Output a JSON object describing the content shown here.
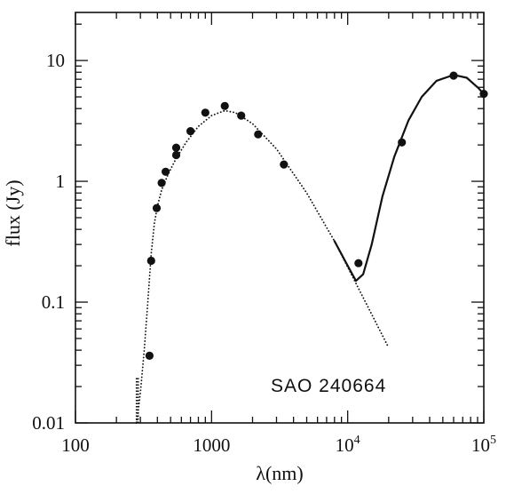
{
  "chart_data": {
    "type": "scatter",
    "title": "",
    "xlabel": "λ(nm)",
    "ylabel": "flux (Jy)",
    "xscale": "log",
    "yscale": "log",
    "xlim": [
      100,
      100000
    ],
    "ylim": [
      0.01,
      25
    ],
    "grid": false,
    "legend": "none",
    "x_ticks": [
      {
        "value": 100,
        "label": "100"
      },
      {
        "value": 1000,
        "label": "1000"
      },
      {
        "value": 10000,
        "base": "10",
        "exp": "4"
      },
      {
        "value": 100000,
        "base": "10",
        "exp": "5"
      }
    ],
    "y_ticks": [
      {
        "value": 0.01,
        "label": "0.01"
      },
      {
        "value": 0.1,
        "label": "0.1"
      },
      {
        "value": 1,
        "label": "1"
      },
      {
        "value": 10,
        "label": "10"
      }
    ],
    "annotation": "SAO 240664",
    "points": [
      {
        "x": 350,
        "y": 0.036
      },
      {
        "x": 360,
        "y": 0.22
      },
      {
        "x": 395,
        "y": 0.6
      },
      {
        "x": 430,
        "y": 0.97
      },
      {
        "x": 460,
        "y": 1.2
      },
      {
        "x": 550,
        "y": 1.65
      },
      {
        "x": 550,
        "y": 1.9
      },
      {
        "x": 700,
        "y": 2.6
      },
      {
        "x": 900,
        "y": 3.7
      },
      {
        "x": 1250,
        "y": 4.2
      },
      {
        "x": 1650,
        "y": 3.5
      },
      {
        "x": 2200,
        "y": 2.45
      },
      {
        "x": 3400,
        "y": 1.38
      },
      {
        "x": 12000,
        "y": 0.21
      },
      {
        "x": 25000,
        "y": 2.1
      },
      {
        "x": 60000,
        "y": 7.5
      },
      {
        "x": 100000,
        "y": 5.3
      }
    ],
    "series": [
      {
        "style": "dotted",
        "points": [
          [
            280,
            0.01
          ],
          [
            290,
            0.013
          ],
          [
            300,
            0.018
          ],
          [
            320,
            0.04
          ],
          [
            340,
            0.1
          ],
          [
            360,
            0.25
          ],
          [
            380,
            0.45
          ],
          [
            400,
            0.62
          ],
          [
            430,
            0.85
          ],
          [
            480,
            1.15
          ],
          [
            550,
            1.55
          ],
          [
            650,
            2.1
          ],
          [
            800,
            2.85
          ],
          [
            1000,
            3.5
          ],
          [
            1250,
            3.85
          ],
          [
            1500,
            3.7
          ],
          [
            2000,
            3.0
          ],
          [
            3000,
            1.85
          ],
          [
            5000,
            0.8
          ],
          [
            8000,
            0.32
          ],
          [
            12000,
            0.13
          ],
          [
            20000,
            0.042
          ]
        ]
      },
      {
        "style": "solid",
        "points": [
          [
            8000,
            0.32
          ],
          [
            10000,
            0.2
          ],
          [
            11500,
            0.15
          ],
          [
            13000,
            0.17
          ],
          [
            15000,
            0.3
          ],
          [
            18000,
            0.75
          ],
          [
            22000,
            1.6
          ],
          [
            28000,
            3.2
          ],
          [
            35000,
            5.0
          ],
          [
            45000,
            6.8
          ],
          [
            60000,
            7.6
          ],
          [
            75000,
            7.2
          ],
          [
            90000,
            6.0
          ],
          [
            100000,
            5.3
          ]
        ]
      }
    ],
    "detection_limit_marks": [
      {
        "x": 280,
        "y_from": 0.01,
        "y_to": 0.024
      },
      {
        "x": 285,
        "y_from": 0.01,
        "y_to": 0.024
      },
      {
        "x": 290,
        "y_from": 0.01,
        "y_to": 0.024
      }
    ]
  }
}
